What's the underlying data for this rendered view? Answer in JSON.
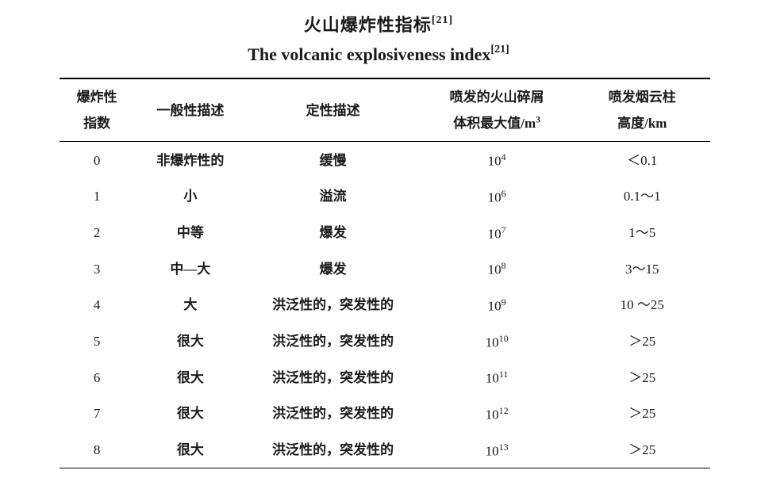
{
  "title": {
    "cn_text": "火山爆炸性指标",
    "cn_ref": "[21]",
    "en_text": "The volcanic explosiveness index",
    "en_ref": "[21]"
  },
  "colors": {
    "background": "#ffffff",
    "text": "#1a1a1a",
    "rule": "#000000"
  },
  "table": {
    "headers": {
      "idx_line1": "爆炸性",
      "idx_line2": "指数",
      "gen": "一般性描述",
      "qual": "定性描述",
      "vol_line1": "喷发的火山碎屑",
      "vol_line2_pre": "体积最大值",
      "vol_line2_slash": "/",
      "vol_line2_unit": "m",
      "vol_line2_unit_exp": "3",
      "ht_line1": "喷发烟云柱",
      "ht_line2_pre": "高度",
      "ht_line2_slash": "/",
      "ht_line2_unit": "km"
    },
    "rows": [
      {
        "idx": "0",
        "gen": "非爆炸性的",
        "qual": "缓慢",
        "vol_base": "10",
        "vol_exp": "4",
        "ht": "＜0.1"
      },
      {
        "idx": "1",
        "gen": "小",
        "qual": "溢流",
        "vol_base": "10",
        "vol_exp": "6",
        "ht": "0.1～1"
      },
      {
        "idx": "2",
        "gen": "中等",
        "qual": "爆发",
        "vol_base": "10",
        "vol_exp": "7",
        "ht": "1～5"
      },
      {
        "idx": "3",
        "gen": "中—大",
        "qual": "爆发",
        "vol_base": "10",
        "vol_exp": "8",
        "ht": "3～15"
      },
      {
        "idx": "4",
        "gen": "大",
        "qual": "洪泛性的，突发性的",
        "vol_base": "10",
        "vol_exp": "9",
        "ht": "10 ～25"
      },
      {
        "idx": "5",
        "gen": "很大",
        "qual": "洪泛性的，突发性的",
        "vol_base": "10",
        "vol_exp": "10",
        "ht": "＞25"
      },
      {
        "idx": "6",
        "gen": "很大",
        "qual": "洪泛性的，突发性的",
        "vol_base": "10",
        "vol_exp": "11",
        "ht": "＞25"
      },
      {
        "idx": "7",
        "gen": "很大",
        "qual": "洪泛性的，突发性的",
        "vol_base": "10",
        "vol_exp": "12",
        "ht": "＞25"
      },
      {
        "idx": "8",
        "gen": "很大",
        "qual": "洪泛性的，突发性的",
        "vol_base": "10",
        "vol_exp": "13",
        "ht": "＞25"
      }
    ]
  }
}
